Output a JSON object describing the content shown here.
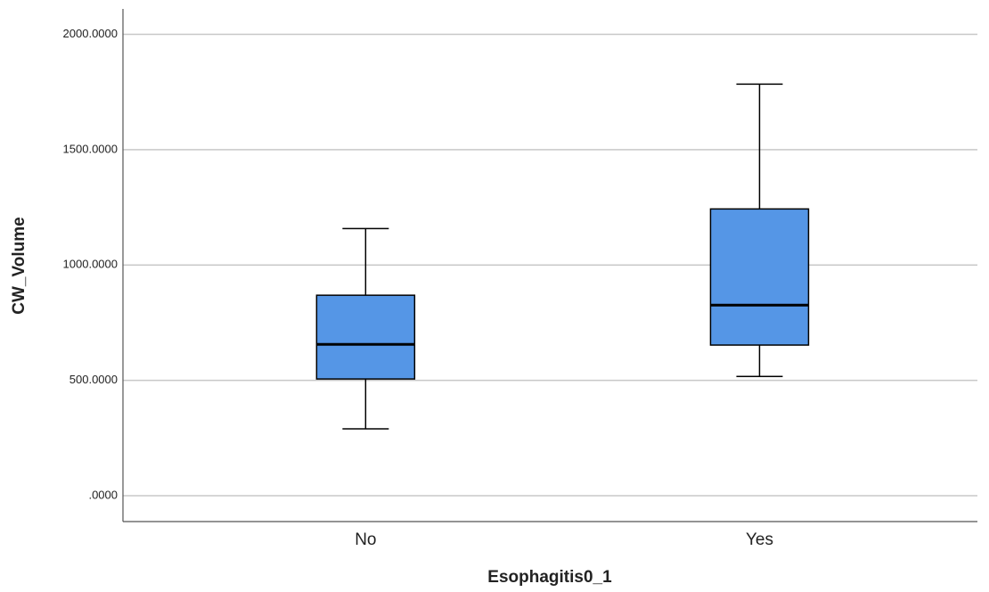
{
  "chart_data": {
    "type": "box",
    "x_label": "Esophagitis0_1",
    "y_label": "CW_Volume",
    "categories": [
      "No",
      "Yes"
    ],
    "boxes": [
      {
        "min": 290,
        "q1": 506,
        "median": 656,
        "q3": 869,
        "max": 1158
      },
      {
        "min": 517,
        "q1": 653,
        "median": 826,
        "q3": 1243,
        "max": 1784
      }
    ],
    "color": "#5596e6",
    "ylim": [
      -112,
      2110
    ],
    "yticks": [
      {
        "value": 0,
        "label": ".0000"
      },
      {
        "value": 500,
        "label": "500.0000"
      },
      {
        "value": 1000,
        "label": "1000.0000"
      },
      {
        "value": 1500,
        "label": "1500.0000"
      },
      {
        "value": 2000,
        "label": "2000.0000"
      }
    ],
    "grid": true
  }
}
